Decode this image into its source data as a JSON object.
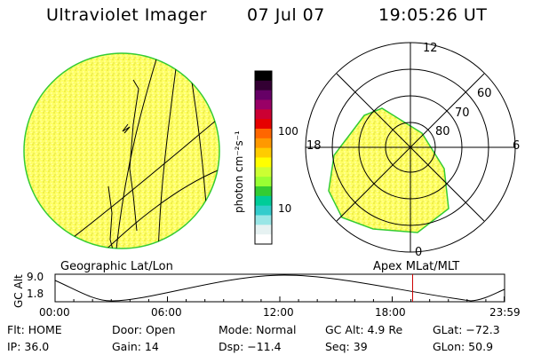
{
  "header": {
    "instrument": "Ultraviolet Imager",
    "date": "07 Jul 07",
    "time": "19:05:26 UT"
  },
  "colorbar": {
    "unit_label": "photon cm⁻²s⁻¹",
    "ticks": [
      "100",
      "10"
    ],
    "colors": [
      "#000000",
      "#330033",
      "#660066",
      "#990066",
      "#cc0033",
      "#e60000",
      "#ff6600",
      "#ff9900",
      "#ffcc00",
      "#ffff00",
      "#ccff33",
      "#99ff33",
      "#33cc33",
      "#00cc99",
      "#33cccc",
      "#99e6e6",
      "#e6f2f2",
      "#ffffff"
    ]
  },
  "polar_plot": {
    "mlt_labels": {
      "top": "12",
      "right": "6",
      "left": "18",
      "bottom": "0"
    },
    "lat_labels": [
      "60",
      "70",
      "80"
    ]
  },
  "geo_label": "Geographic Lat/Lon",
  "apex_label": "Apex MLat/MLT",
  "alt_plot": {
    "ylabel": "GC Alt",
    "y_ticks": [
      "9.0",
      "1.8"
    ],
    "x_ticks": [
      "00:00",
      "06:00",
      "12:00",
      "18:00",
      "23:59"
    ],
    "current_time_marker_hours": 19.09,
    "marker_color": "#cc0000"
  },
  "status": {
    "flt": "Flt: HOME",
    "ip": "IP: 36.0",
    "door": "Door: Open",
    "gain": "Gain: 14",
    "mode": "Mode: Normal",
    "dsp": "Dsp: −11.4",
    "gc_alt": "GC Alt: 4.9 Re",
    "seq": "Seq: 39",
    "glat": "GLat: −72.3",
    "glon": "GLon: 50.9"
  },
  "colors": {
    "emission_yellow": "#ffff33",
    "emission_edge": "#33cc33"
  }
}
